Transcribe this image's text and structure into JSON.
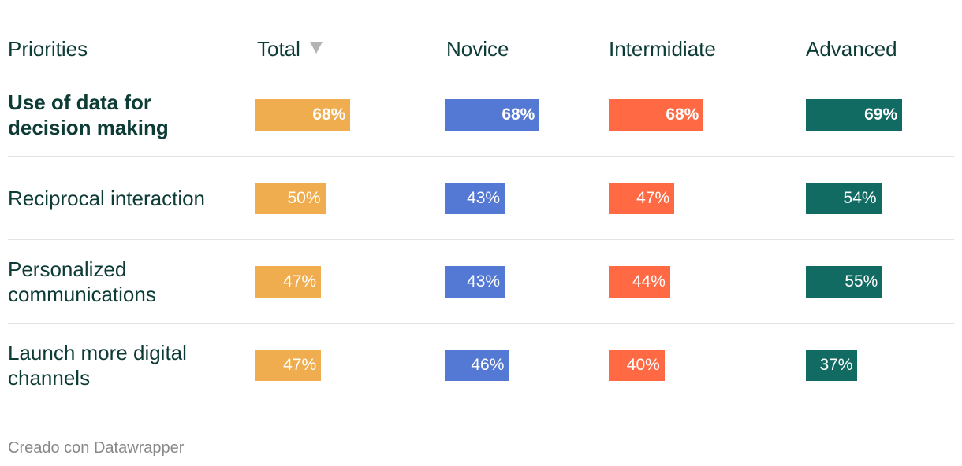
{
  "chart_data": {
    "type": "table",
    "columns": [
      {
        "key": "priorities",
        "label": "Priorities"
      },
      {
        "key": "total",
        "label": "Total",
        "sorted": "descending",
        "color": "#efad4f"
      },
      {
        "key": "novice",
        "label": "Novice",
        "color": "#5479d4"
      },
      {
        "key": "intermidiate",
        "label": "Intermidiate",
        "color": "#ff6a45"
      },
      {
        "key": "advanced",
        "label": "Advanced",
        "color": "#126b63"
      }
    ],
    "rows": [
      {
        "label": "Use of data for decision making",
        "highlight": true,
        "values": [
          68,
          68,
          68,
          69
        ],
        "labels": [
          "68%",
          "68%",
          "68%",
          "69%"
        ]
      },
      {
        "label": "Reciprocal interaction",
        "highlight": false,
        "values": [
          50,
          43,
          47,
          54
        ],
        "labels": [
          "50%",
          "43%",
          "47%",
          "54%"
        ]
      },
      {
        "label": "Personalized communications",
        "highlight": false,
        "values": [
          47,
          43,
          44,
          55
        ],
        "labels": [
          "47%",
          "43%",
          "44%",
          "55%"
        ]
      },
      {
        "label": "Launch more digital channels",
        "highlight": false,
        "values": [
          47,
          46,
          40,
          37
        ],
        "labels": [
          "47%",
          "46%",
          "40%",
          "37%"
        ]
      }
    ],
    "bar_scale_max": 100,
    "sort_icon": "sort-descending-triangle-icon"
  },
  "credit": "Creado con Datawrapper"
}
